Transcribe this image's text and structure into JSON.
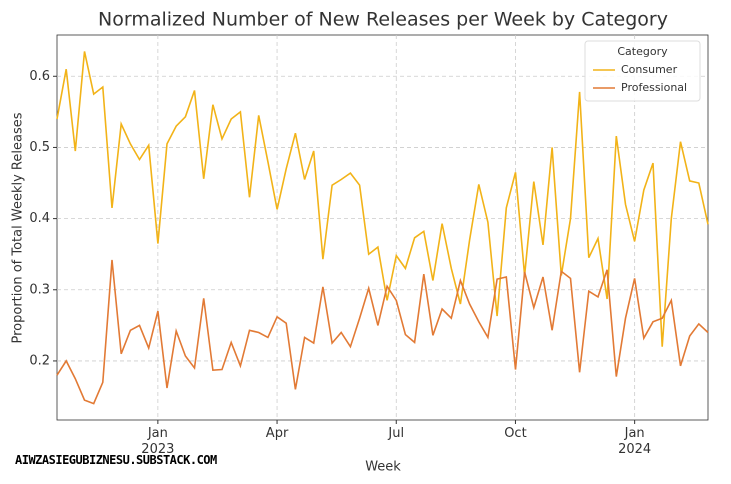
{
  "chart_data": {
    "type": "line",
    "title": "Normalized Number of New Releases per Week by Category",
    "xlabel": "Week",
    "ylabel": "Proportion of Total Weekly Releases",
    "watermark": "AIWZASIEGUBIZNESU.SUBSTACK.COM",
    "legend_title": "Category",
    "legend": "upper right",
    "grid": true,
    "categories": [
      null,
      null,
      null,
      null,
      null,
      null,
      null,
      null,
      null,
      null,
      null,
      "Jan\n2023",
      null,
      null,
      null,
      null,
      null,
      null,
      null,
      null,
      null,
      null,
      null,
      null,
      "Apr",
      null,
      null,
      null,
      null,
      null,
      null,
      null,
      null,
      null,
      null,
      null,
      null,
      "Jul",
      null,
      null,
      null,
      null,
      null,
      null,
      null,
      null,
      null,
      null,
      null,
      null,
      "Oct",
      null,
      null,
      null,
      null,
      null,
      null,
      null,
      null,
      null,
      null,
      null,
      null,
      "Jan\n2024",
      null,
      null,
      null,
      null,
      null,
      null,
      null,
      null
    ],
    "series": [
      {
        "name": "Consumer",
        "color": "#f2b318",
        "values": [
          0.54,
          0.61,
          0.495,
          0.635,
          0.575,
          0.585,
          0.415,
          0.533,
          0.505,
          0.483,
          0.503,
          0.365,
          0.505,
          0.53,
          0.543,
          0.58,
          0.456,
          0.56,
          0.512,
          0.54,
          0.55,
          0.43,
          0.545,
          0.48,
          0.413,
          0.47,
          0.52,
          0.455,
          0.495,
          0.343,
          0.447,
          0.455,
          0.464,
          0.447,
          0.35,
          0.36,
          0.285,
          0.348,
          0.33,
          0.373,
          0.382,
          0.313,
          0.393,
          0.33,
          0.28,
          0.37,
          0.448,
          0.395,
          0.263,
          0.415,
          0.465,
          0.32,
          0.452,
          0.363,
          0.5,
          0.32,
          0.4,
          0.578,
          0.345,
          0.372,
          0.287,
          0.516,
          0.42,
          0.368,
          0.44,
          0.478,
          0.22,
          0.4,
          0.508,
          0.453,
          0.45,
          0.392
        ]
      },
      {
        "name": "Professional",
        "color": "#e27a35",
        "values": [
          0.18,
          0.2,
          0.175,
          0.145,
          0.14,
          0.17,
          0.342,
          0.21,
          0.243,
          0.25,
          0.218,
          0.27,
          0.162,
          0.242,
          0.207,
          0.19,
          0.288,
          0.187,
          0.188,
          0.226,
          0.193,
          0.243,
          0.24,
          0.233,
          0.262,
          0.253,
          0.16,
          0.233,
          0.225,
          0.304,
          0.225,
          0.24,
          0.22,
          0.26,
          0.302,
          0.25,
          0.305,
          0.285,
          0.237,
          0.226,
          0.322,
          0.236,
          0.273,
          0.26,
          0.313,
          0.28,
          0.255,
          0.233,
          0.315,
          0.318,
          0.188,
          0.325,
          0.275,
          0.318,
          0.243,
          0.326,
          0.316,
          0.184,
          0.298,
          0.29,
          0.328,
          0.178,
          0.26,
          0.316,
          0.232,
          0.255,
          0.26,
          0.285,
          0.193,
          0.235,
          0.252,
          0.24
        ]
      }
    ],
    "ylim": [
      0.117,
      0.658
    ],
    "yticks": [
      0.2,
      0.3,
      0.4,
      0.5,
      0.6
    ]
  }
}
